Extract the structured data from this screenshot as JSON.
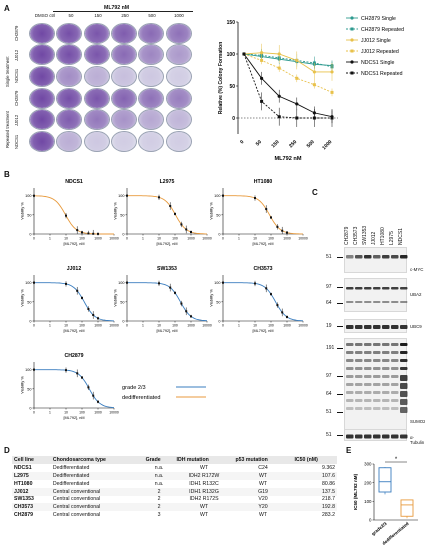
{
  "panel_letters": {
    "a": "A",
    "b": "B",
    "c": "C",
    "d": "D",
    "e": "E"
  },
  "panel_a": {
    "drug_header": "ML792 nM",
    "columns": [
      "DMSO ctrl",
      "50",
      "150",
      "250",
      "500",
      "1000"
    ],
    "group_labels": {
      "single": "Single treatment",
      "repeated": "Repeated treatment"
    },
    "row_labels": [
      "CH2879",
      "JJ012",
      "NDCS1",
      "CH2879",
      "JJ012",
      "NDCS1"
    ],
    "colors": {
      "plate_purple": "#6a3fa0",
      "plate_bg": "#e6e9f1"
    }
  },
  "chart_data": [
    {
      "type": "line",
      "panel": "A",
      "ylabel": "Relative (%) Colony Formation",
      "xlabel": "ML792 nM",
      "categories": [
        "0",
        "50",
        "150",
        "250",
        "500",
        "1000"
      ],
      "ylim": [
        -25,
        150
      ],
      "y_ticks": [
        0,
        50,
        100,
        150
      ],
      "legend_position": "right",
      "series": [
        {
          "name": "CH2879 Single",
          "values": [
            100,
            96,
            92,
            88,
            84,
            82
          ],
          "color": "#2e9a8f",
          "dashed": false,
          "marker": "circle"
        },
        {
          "name": "CH2879 Repeated",
          "values": [
            100,
            98,
            94,
            90,
            86,
            80
          ],
          "color": "#2e9a8f",
          "dashed": true,
          "marker": "square"
        },
        {
          "name": "JJ012 Single",
          "values": [
            100,
            102,
            100,
            90,
            72,
            72
          ],
          "color": "#e8c14a",
          "dashed": false,
          "marker": "circle"
        },
        {
          "name": "JJ012 Repeated",
          "values": [
            100,
            90,
            78,
            62,
            52,
            40
          ],
          "color": "#e8c14a",
          "dashed": true,
          "marker": "square"
        },
        {
          "name": "NDCS1 Single",
          "values": [
            100,
            62,
            34,
            22,
            8,
            2
          ],
          "color": "#111111",
          "dashed": false,
          "marker": "circle"
        },
        {
          "name": "NDCS1 Repeated",
          "values": [
            100,
            26,
            2,
            0,
            0,
            0
          ],
          "color": "#111111",
          "dashed": true,
          "marker": "square"
        }
      ]
    },
    {
      "type": "line",
      "panel": "B",
      "charts": [
        {
          "title": "NDCS1",
          "group": "dedifferentiated",
          "ic50": 9.362
        },
        {
          "title": "L2975",
          "group": "dedifferentiated",
          "ic50": 107.6
        },
        {
          "title": "HT1080",
          "group": "dedifferentiated",
          "ic50": 80.86
        },
        {
          "title": "JJ012",
          "group": "grade 2/3",
          "ic50": 137.5
        },
        {
          "title": "SW1353",
          "group": "grade 2/3",
          "ic50": 218.7
        },
        {
          "title": "CH3573",
          "group": "grade 2/3",
          "ic50": 192.8
        },
        {
          "title": "CH2879",
          "group": "grade 2/3",
          "ic50": 283.2
        }
      ],
      "ylabel": "Viability %",
      "xlabel": "[ML792], nM",
      "x_ticks": [
        "0",
        "1",
        "10",
        "100",
        "1000",
        "10000"
      ],
      "y_ticks": [
        "0",
        "50",
        "100"
      ],
      "legend": [
        {
          "name": "grade 2/3",
          "color": "#3a7dbf"
        },
        {
          "name": "dedifferentiated",
          "color": "#e89a3c"
        }
      ]
    },
    {
      "type": "bar",
      "panel": "E",
      "ylabel": "IC50 (ML792 nM)",
      "categories": [
        "grade2/3",
        "dedifferentiated"
      ],
      "y_ticks": [
        0,
        100,
        200,
        300
      ],
      "ylim": [
        0,
        300
      ],
      "boxes": [
        {
          "name": "grade2/3",
          "min": 137.5,
          "q1": 150,
          "median": 205,
          "q3": 280,
          "max": 283.2,
          "color": "#3a7dbf"
        },
        {
          "name": "dedifferentiated",
          "min": 9.362,
          "q1": 20,
          "median": 80.86,
          "q3": 107.6,
          "max": 107.6,
          "color": "#e89a3c"
        }
      ],
      "significance": "*"
    }
  ],
  "panel_c": {
    "lanes": [
      "CH2879",
      "CH3573",
      "SW1353",
      "JJ012",
      "HT1080",
      "L2975",
      "NDCS1"
    ],
    "blots": [
      {
        "mw": "51",
        "protein": "c-MYC"
      },
      {
        "mw": "97",
        "protein": "UBA2"
      },
      {
        "mw": "19",
        "protein": "UBC9"
      },
      {
        "mw": "191",
        "protein": "SUMO2/3"
      },
      {
        "mw": "51",
        "protein": "α-Tubulin"
      }
    ],
    "sumo_mw": [
      "191",
      "97",
      "64",
      "51"
    ],
    "uba2_mw": [
      "97",
      "64"
    ]
  },
  "panel_d": {
    "headers": [
      "Cell line",
      "Chondosarcoma type",
      "Grade",
      "IDH mutation",
      "p53 mutation",
      "IC50 (nM)"
    ],
    "rows": [
      [
        "NDCS1",
        "Dedifferentiated",
        "n.a.",
        "WT",
        "C24",
        "9.362"
      ],
      [
        "L2975",
        "Dedifferentiated",
        "n.a.",
        "IDH2 R172W",
        "WT",
        "107.6"
      ],
      [
        "HT1080",
        "Dedifferentiated",
        "n.a.",
        "IDH1 R132C",
        "WT",
        "80.86"
      ],
      [
        "JJ012",
        "Central conventional",
        "2",
        "IDH1 R132G",
        "G19",
        "137.5"
      ],
      [
        "SW1353",
        "Central conventional",
        "2",
        "IDH2 R172S",
        "V20",
        "218.7"
      ],
      [
        "CH3573",
        "Central conventional",
        "2",
        "WT",
        "Y20",
        "192.8"
      ],
      [
        "CH2879",
        "Central conventional",
        "3",
        "WT",
        "WT",
        "283.2"
      ]
    ]
  }
}
